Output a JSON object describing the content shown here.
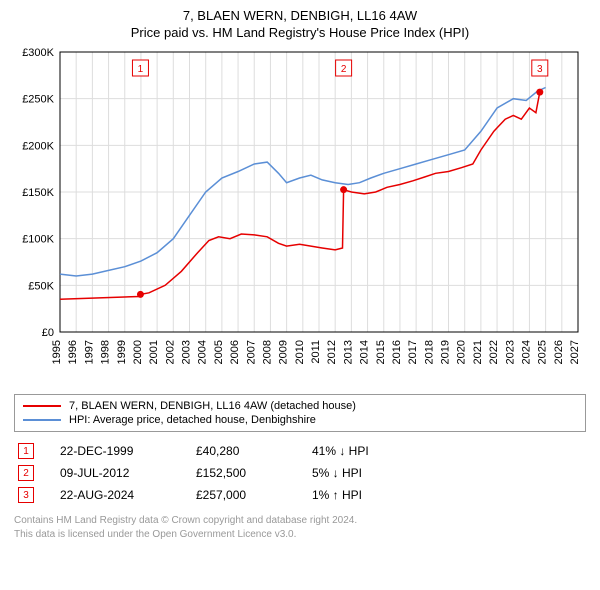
{
  "title_line1": "7, BLAEN WERN, DENBIGH, LL16 4AW",
  "title_line2": "Price paid vs. HM Land Registry's House Price Index (HPI)",
  "chart": {
    "type": "line",
    "background_color": "#ffffff",
    "grid_color": "#dddddd",
    "border_color": "#000000",
    "x_years": [
      1995,
      1996,
      1997,
      1998,
      1999,
      2000,
      2001,
      2002,
      2003,
      2004,
      2005,
      2006,
      2007,
      2008,
      2009,
      2010,
      2011,
      2012,
      2013,
      2014,
      2015,
      2016,
      2017,
      2018,
      2019,
      2020,
      2021,
      2022,
      2023,
      2024,
      2025,
      2026,
      2027
    ],
    "x_min": 1995,
    "x_max": 2027,
    "y_min": 0,
    "y_max": 300000,
    "y_ticks": [
      0,
      50000,
      100000,
      150000,
      200000,
      250000,
      300000
    ],
    "y_tick_labels": [
      "£0",
      "£50K",
      "£100K",
      "£150K",
      "£200K",
      "£250K",
      "£300K"
    ],
    "series": [
      {
        "name": "price_paid",
        "color": "#e60000",
        "width": 1.5,
        "points": [
          [
            1995.0,
            35000
          ],
          [
            1999.9,
            38000
          ],
          [
            1999.97,
            40280
          ],
          [
            2000.5,
            42000
          ],
          [
            2001.5,
            50000
          ],
          [
            2002.5,
            65000
          ],
          [
            2003.5,
            85000
          ],
          [
            2004.2,
            98000
          ],
          [
            2004.8,
            102000
          ],
          [
            2005.5,
            100000
          ],
          [
            2006.2,
            105000
          ],
          [
            2007.0,
            104000
          ],
          [
            2007.8,
            102000
          ],
          [
            2008.5,
            95000
          ],
          [
            2009.0,
            92000
          ],
          [
            2009.8,
            94000
          ],
          [
            2010.5,
            92000
          ],
          [
            2011.2,
            90000
          ],
          [
            2012.0,
            88000
          ],
          [
            2012.45,
            90000
          ],
          [
            2012.52,
            152500
          ],
          [
            2013.0,
            150000
          ],
          [
            2013.8,
            148000
          ],
          [
            2014.5,
            150000
          ],
          [
            2015.2,
            155000
          ],
          [
            2016.0,
            158000
          ],
          [
            2016.8,
            162000
          ],
          [
            2017.5,
            166000
          ],
          [
            2018.2,
            170000
          ],
          [
            2019.0,
            172000
          ],
          [
            2019.8,
            176000
          ],
          [
            2020.5,
            180000
          ],
          [
            2021.0,
            195000
          ],
          [
            2021.8,
            215000
          ],
          [
            2022.5,
            228000
          ],
          [
            2023.0,
            232000
          ],
          [
            2023.5,
            228000
          ],
          [
            2024.0,
            240000
          ],
          [
            2024.4,
            235000
          ],
          [
            2024.64,
            257000
          ]
        ]
      },
      {
        "name": "hpi",
        "color": "#5b8fd6",
        "width": 1.5,
        "points": [
          [
            1995.0,
            62000
          ],
          [
            1996.0,
            60000
          ],
          [
            1997.0,
            62000
          ],
          [
            1998.0,
            66000
          ],
          [
            1999.0,
            70000
          ],
          [
            2000.0,
            76000
          ],
          [
            2001.0,
            85000
          ],
          [
            2002.0,
            100000
          ],
          [
            2003.0,
            125000
          ],
          [
            2004.0,
            150000
          ],
          [
            2005.0,
            165000
          ],
          [
            2006.0,
            172000
          ],
          [
            2007.0,
            180000
          ],
          [
            2007.8,
            182000
          ],
          [
            2008.5,
            170000
          ],
          [
            2009.0,
            160000
          ],
          [
            2009.8,
            165000
          ],
          [
            2010.5,
            168000
          ],
          [
            2011.2,
            163000
          ],
          [
            2012.0,
            160000
          ],
          [
            2012.8,
            158000
          ],
          [
            2013.5,
            160000
          ],
          [
            2014.2,
            165000
          ],
          [
            2015.0,
            170000
          ],
          [
            2016.0,
            175000
          ],
          [
            2017.0,
            180000
          ],
          [
            2018.0,
            185000
          ],
          [
            2019.0,
            190000
          ],
          [
            2020.0,
            195000
          ],
          [
            2021.0,
            215000
          ],
          [
            2022.0,
            240000
          ],
          [
            2023.0,
            250000
          ],
          [
            2023.8,
            248000
          ],
          [
            2024.5,
            258000
          ],
          [
            2025.0,
            262000
          ]
        ]
      }
    ],
    "markers": [
      {
        "n": "1",
        "year": 1999.97,
        "price": 40280
      },
      {
        "n": "2",
        "year": 2012.52,
        "price": 152500
      },
      {
        "n": "3",
        "year": 2024.64,
        "price": 257000
      }
    ],
    "marker_box_color": "#e60000",
    "marker_dot_color": "#e60000"
  },
  "legend": {
    "items": [
      {
        "color": "#e60000",
        "label": "7, BLAEN WERN, DENBIGH, LL16 4AW (detached house)"
      },
      {
        "color": "#5b8fd6",
        "label": "HPI: Average price, detached house, Denbighshire"
      }
    ]
  },
  "transactions": [
    {
      "n": "1",
      "date": "22-DEC-1999",
      "price": "£40,280",
      "diff": "41% ↓ HPI"
    },
    {
      "n": "2",
      "date": "09-JUL-2012",
      "price": "£152,500",
      "diff": "5% ↓ HPI"
    },
    {
      "n": "3",
      "date": "22-AUG-2024",
      "price": "£257,000",
      "diff": "1% ↑ HPI"
    }
  ],
  "footer_line1": "Contains HM Land Registry data © Crown copyright and database right 2024.",
  "footer_line2": "This data is licensed under the Open Government Licence v3.0."
}
